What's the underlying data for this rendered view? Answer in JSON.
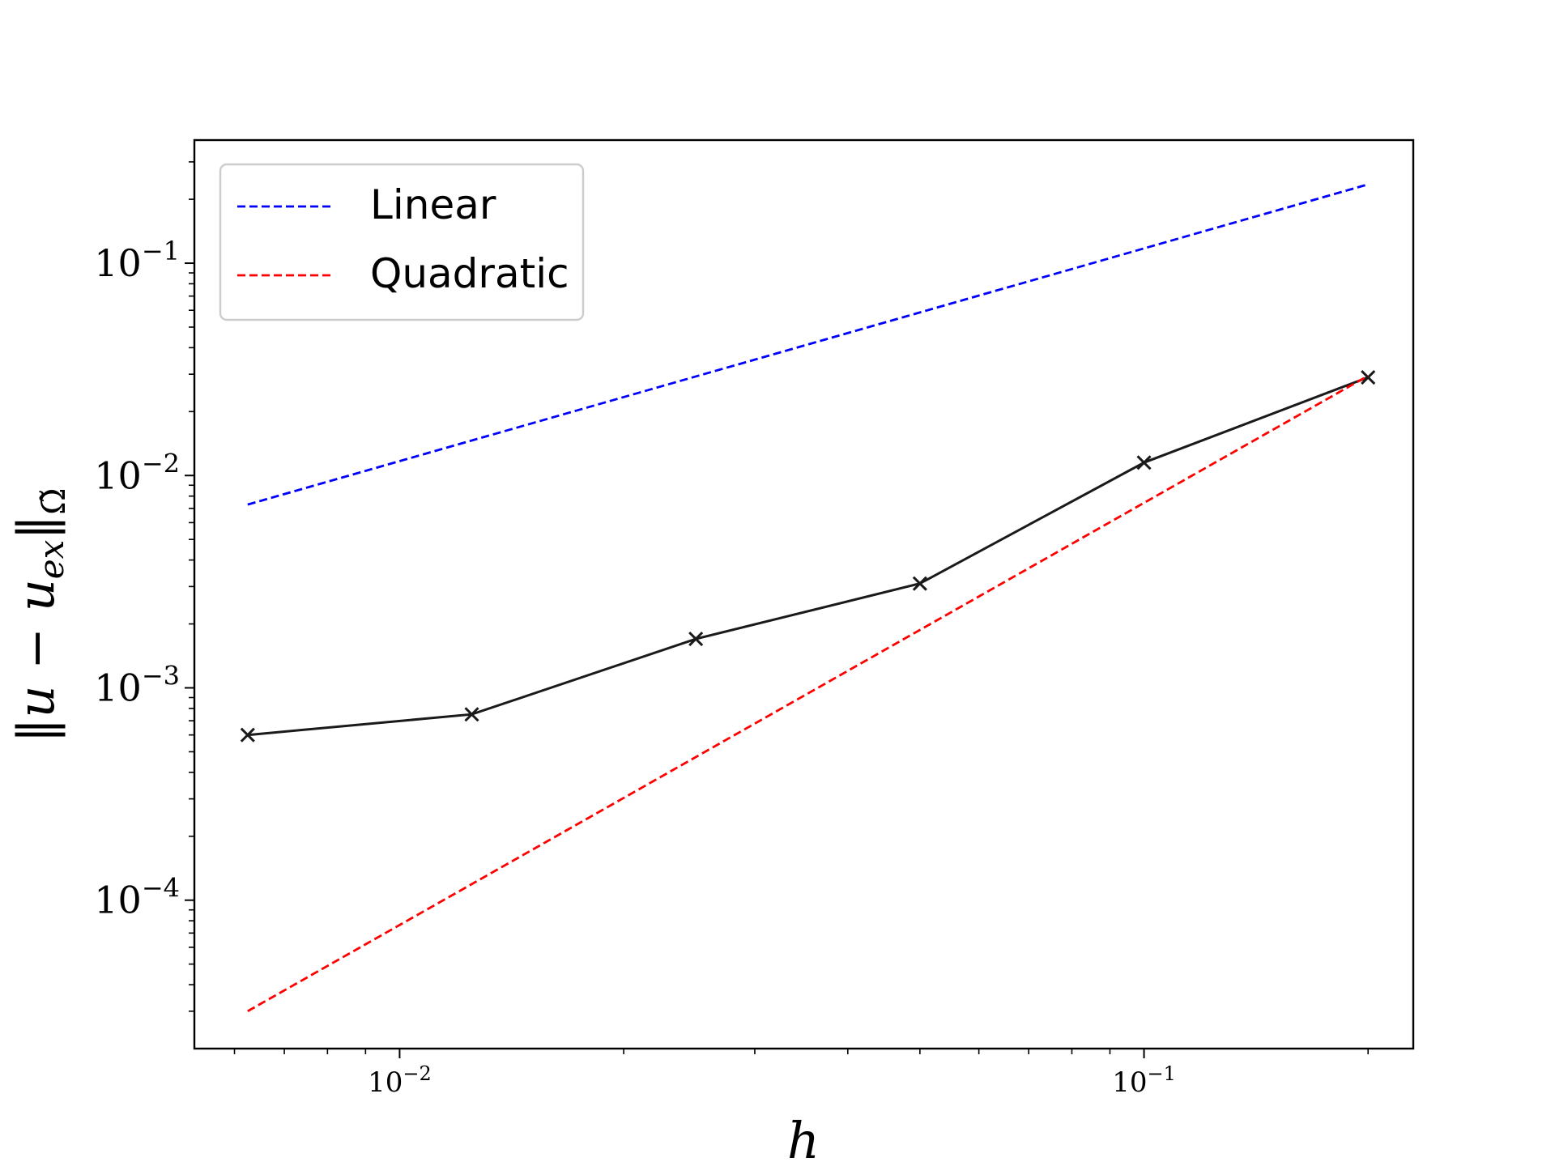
{
  "chart_data": {
    "type": "line",
    "title": "",
    "xlabel": "h",
    "ylabel_parts": {
      "open": "‖",
      "u": "u",
      "minus": " − ",
      "u2": "u",
      "sub": "ex",
      "close": "‖",
      "norm_sub": "Ω̃"
    },
    "xscale": "log",
    "yscale": "log",
    "xlim": [
      0.0053,
      0.23
    ],
    "ylim": [
      2e-05,
      0.38
    ],
    "grid": false,
    "legend_position": "top-left",
    "x_ticks": [
      {
        "value": 0.01,
        "base": "10",
        "exp": "−2"
      },
      {
        "value": 0.1,
        "base": "10",
        "exp": "−1"
      }
    ],
    "y_ticks": [
      {
        "value": 0.0001,
        "base": "10",
        "exp": "−4"
      },
      {
        "value": 0.001,
        "base": "10",
        "exp": "−3"
      },
      {
        "value": 0.01,
        "base": "10",
        "exp": "−2"
      },
      {
        "value": 0.1,
        "base": "10",
        "exp": "−1"
      }
    ],
    "series": [
      {
        "color": "#1a1a1a",
        "style": "solid",
        "marker": "x",
        "x": [
          0.00625,
          0.0125,
          0.025,
          0.05,
          0.1,
          0.2
        ],
        "y": [
          0.0006,
          0.00075,
          0.0017,
          0.0031,
          0.0115,
          0.029
        ]
      },
      {
        "name": "Linear",
        "color": "#0000ff",
        "style": "dashed",
        "marker": "none",
        "x": [
          0.00625,
          0.2
        ],
        "y": [
          0.0073,
          0.235
        ]
      },
      {
        "name": "Quadratic",
        "color": "#ff0000",
        "style": "dashed",
        "marker": "none",
        "x": [
          0.00625,
          0.2
        ],
        "y": [
          3e-05,
          0.0295
        ]
      }
    ]
  }
}
